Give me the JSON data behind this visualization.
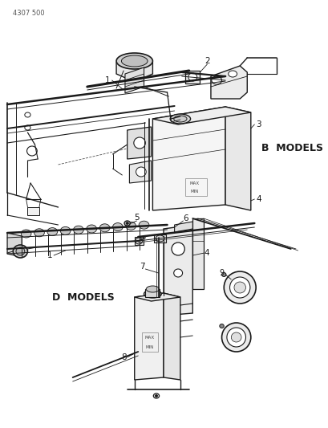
{
  "page_code": "4307 500",
  "background_color": "#ffffff",
  "line_color": "#1a1a1a",
  "figsize": [
    4.1,
    5.33
  ],
  "dpi": 100,
  "b_models_label": "B  MODELS",
  "d_models_label": "D  MODELS",
  "gray_light": "#c8c8c8",
  "gray_mid": "#888888",
  "gray_dark": "#444444"
}
